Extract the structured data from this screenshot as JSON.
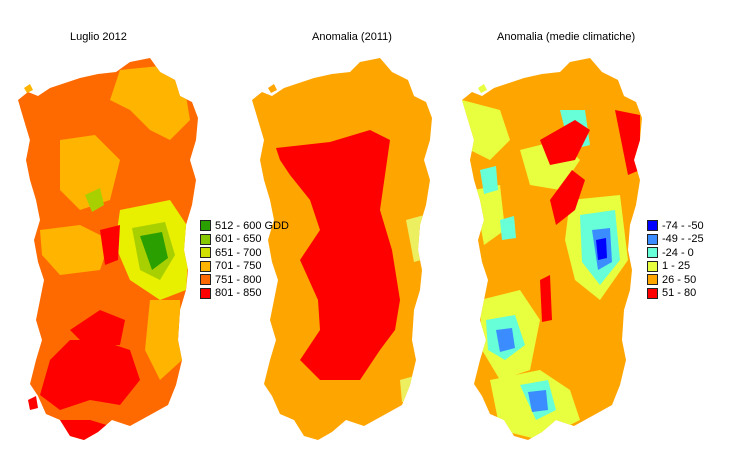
{
  "panels": [
    {
      "title": "Luglio 2012",
      "colors": {
        "base": "#ff6a00",
        "high": "#ff0000",
        "mid": "#ffb400",
        "yellow": "#e8f000",
        "lgreen": "#a8d000",
        "green": "#2aa000"
      }
    },
    {
      "title": "Anomalia (2011)",
      "colors": {
        "base": "#ffa500",
        "high": "#ff0000",
        "yellow": "#ecf060"
      }
    },
    {
      "title": "Anomalia (medie climatiche)",
      "colors": {
        "base": "#ffa500",
        "high": "#ff0000",
        "yellow": "#e8ff40",
        "cyan": "#66ffd8",
        "lblue": "#3a8cff",
        "dblue": "#0000ff"
      }
    }
  ],
  "legend_gdd": [
    {
      "label": "512 - 600 GDD",
      "color": "#2aa000"
    },
    {
      "label": "601 - 650",
      "color": "#88c800"
    },
    {
      "label": "651 - 700",
      "color": "#d0e000"
    },
    {
      "label": "701 - 750",
      "color": "#ffb400"
    },
    {
      "label": "751 - 800",
      "color": "#ff6a00"
    },
    {
      "label": "801 - 850",
      "color": "#ff0000"
    }
  ],
  "legend_anomaly": [
    {
      "label": "-74 - -50",
      "color": "#0000ff"
    },
    {
      "label": "-49 - -25",
      "color": "#3a8cff"
    },
    {
      "label": "-24 - 0",
      "color": "#66ffd8"
    },
    {
      "label": "1 - 25",
      "color": "#e8ff40"
    },
    {
      "label": "26 - 50",
      "color": "#ffa500"
    },
    {
      "label": "51 - 80",
      "color": "#ff0000"
    }
  ]
}
